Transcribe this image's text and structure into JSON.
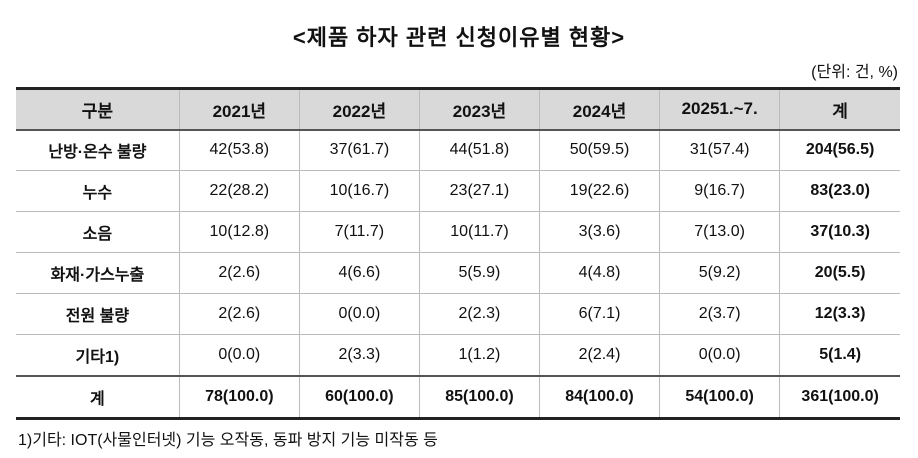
{
  "title": "<제품 하자 관련 신청이유별 현황>",
  "unit": "(단위: 건, %)",
  "table": {
    "headers": [
      "구분",
      "2021년",
      "2022년",
      "2023년",
      "2024년",
      "20251.~7.",
      "계"
    ],
    "rows": [
      [
        "난방·온수 불량",
        "42(53.8)",
        "37(61.7)",
        "44(51.8)",
        "50(59.5)",
        "31(57.4)",
        "204(56.5)"
      ],
      [
        "누수",
        "22(28.2)",
        "10(16.7)",
        "23(27.1)",
        "19(22.6)",
        "9(16.7)",
        "83(23.0)"
      ],
      [
        "소음",
        "10(12.8)",
        "7(11.7)",
        "10(11.7)",
        "3(3.6)",
        "7(13.0)",
        "37(10.3)"
      ],
      [
        "화재·가스누출",
        "2(2.6)",
        "4(6.6)",
        "5(5.9)",
        "4(4.8)",
        "5(9.2)",
        "20(5.5)"
      ],
      [
        "전원 불량",
        "2(2.6)",
        "0(0.0)",
        "2(2.3)",
        "6(7.1)",
        "2(3.7)",
        "12(3.3)"
      ],
      [
        "기타1)",
        "0(0.0)",
        "2(3.3)",
        "1(1.2)",
        "2(2.4)",
        "0(0.0)",
        "5(1.4)"
      ]
    ],
    "total": [
      "계",
      "78(100.0)",
      "60(100.0)",
      "85(100.0)",
      "84(100.0)",
      "54(100.0)",
      "361(100.0)"
    ]
  },
  "footnote": "1)기타: IOT(사물인터넷) 기능 오작동, 동파 방지 기능 미작동 등",
  "colors": {
    "header_bg": "#d9d9d9"
  }
}
